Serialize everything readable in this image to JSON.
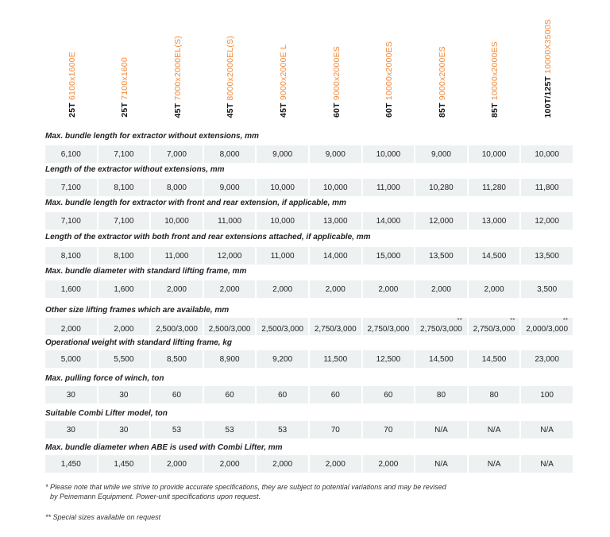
{
  "models": [
    {
      "tonnage": "25T",
      "model": "6100x1600E"
    },
    {
      "tonnage": "25T",
      "model": "7100x1600"
    },
    {
      "tonnage": "45T",
      "model": "7000x2000EL(S)"
    },
    {
      "tonnage": "45T",
      "model": "8000x2000EL(S)"
    },
    {
      "tonnage": "45T",
      "model": "9000x2000E L"
    },
    {
      "tonnage": "60T",
      "model": "9000x2000ES"
    },
    {
      "tonnage": "60T",
      "model": "10000x2000ES"
    },
    {
      "tonnage": "85T",
      "model": "9000x2000ES"
    },
    {
      "tonnage": "85T",
      "model": "10000x2000ES"
    },
    {
      "tonnage": "100T/125T",
      "model": "10000X3500S"
    }
  ],
  "rows": [
    {
      "label": "Max. bundle length for extractor without extensions, mm",
      "values": [
        "6,100",
        "7,100",
        "7,000",
        "8,000",
        "9,000",
        "9,000",
        "10,000",
        "9,000",
        "10,000",
        "10,000"
      ]
    },
    {
      "label": "Length of the extractor without extensions, mm",
      "values": [
        "7,100",
        "8,100",
        "8,000",
        "9,000",
        "10,000",
        "10,000",
        "11,000",
        "10,280",
        "11,280",
        "11,800"
      ]
    },
    {
      "label": "Max. bundle length for extractor with front and rear extension, if applicable, mm",
      "values": [
        "7,100",
        "7,100",
        "10,000",
        "11,000",
        "10,000",
        "13,000",
        "14,000",
        "12,000",
        "13,000",
        "12,000"
      ]
    },
    {
      "label": "Length of the extractor with both front and rear extensions attached, if applicable, mm",
      "values": [
        "8,100",
        "8,100",
        "11,000",
        "12,000",
        "11,000",
        "14,000",
        "15,000",
        "13,500",
        "14,500",
        "13,500"
      ]
    },
    {
      "label": "Max. bundle diameter with standard lifting frame, mm",
      "values": [
        "1,600",
        "1,600",
        "2,000",
        "2,000",
        "2,000",
        "2,000",
        "2,000",
        "2,000",
        "2,000",
        "3,500"
      ]
    },
    {
      "label": "Other size lifting frames which are available, mm",
      "values": [
        "2,000",
        "2,000",
        "2,500/3,000",
        "2,500/3,000",
        "2,500/3,000",
        "2,750/3,000",
        "2,750/3,000",
        "2,750/3,000",
        "2,750/3,000",
        "2,000/3,000"
      ],
      "marks": [
        "",
        "",
        "",
        "",
        "",
        "",
        "",
        "**",
        "**",
        "**"
      ]
    },
    {
      "label": "Operational weight with standard lifting frame, kg",
      "values": [
        "5,000",
        "5,500",
        "8,500",
        "8,900",
        "9,200",
        "11,500",
        "12,500",
        "14,500",
        "14,500",
        "23,000"
      ]
    },
    {
      "label": "Max. pulling force of winch, ton",
      "values": [
        "30",
        "30",
        "60",
        "60",
        "60",
        "60",
        "60",
        "80",
        "80",
        "100"
      ]
    },
    {
      "label": "Suitable Combi Lifter model, ton",
      "values": [
        "30",
        "30",
        "53",
        "53",
        "53",
        "70",
        "70",
        "N/A",
        "N/A",
        "N/A"
      ]
    },
    {
      "label": "Max. bundle diameter when ABE is used with Combi Lifter,  mm",
      "values": [
        "1,450",
        "1,450",
        "2,000",
        "2,000",
        "2,000",
        "2,000",
        "2,000",
        "N/A",
        "N/A",
        "N/A"
      ]
    }
  ],
  "notes": {
    "note1_line1": "* Please note that while we strive to provide accurate specifications, they are subject to potential variations and may be revised",
    "note1_line2": "by Peinemann Equipment. Power-unit specifications upon request.",
    "note2": "** Special sizes available on request"
  },
  "colors": {
    "accent": "#f5893a",
    "cell_bg": "#eef1f2"
  }
}
